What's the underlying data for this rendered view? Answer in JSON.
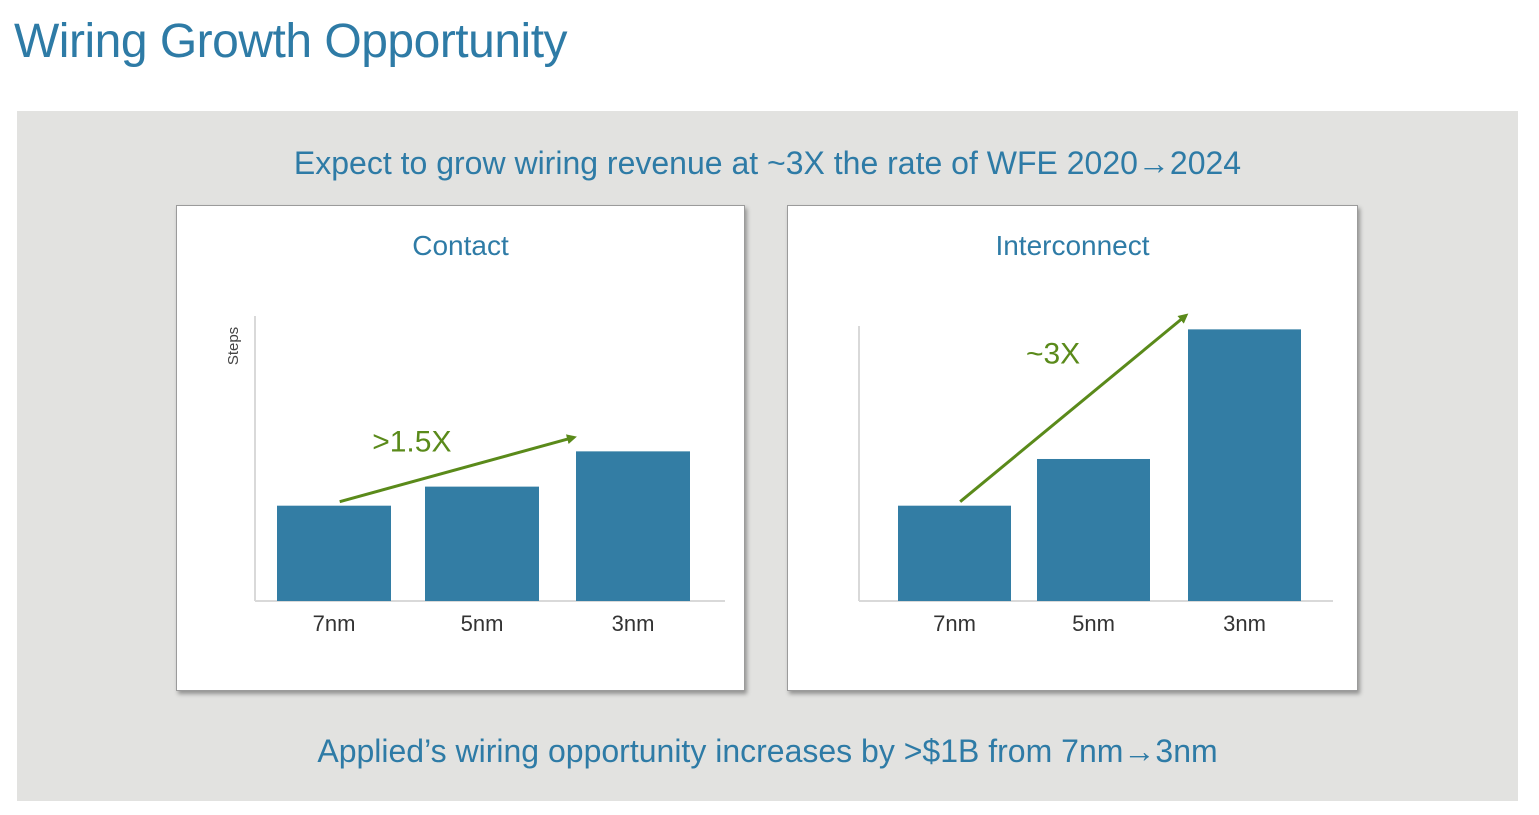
{
  "title": "Wiring Growth Opportunity",
  "headline": "Expect to grow wiring revenue at ~3X the rate of WFE 2020→2024",
  "footline": "Applied’s wiring opportunity increases by >$1B from 7nm→3nm",
  "colors": {
    "bar": "#337da4",
    "arrow": "#5a8a1a",
    "text": "#2e7ba6"
  },
  "chart_data": [
    {
      "type": "bar",
      "title": "Contact",
      "ylabel": "Steps",
      "categories": [
        "7nm",
        "5nm",
        "3nm"
      ],
      "values": [
        1.0,
        1.2,
        1.57
      ],
      "ylim": [
        0,
        3.2
      ],
      "annotation": ">1.5X"
    },
    {
      "type": "bar",
      "title": "Interconnect",
      "ylabel": "",
      "categories": [
        "7nm",
        "5nm",
        "3nm"
      ],
      "values": [
        1.0,
        1.49,
        2.85
      ],
      "ylim": [
        0,
        3.2
      ],
      "annotation": "~3X"
    }
  ]
}
